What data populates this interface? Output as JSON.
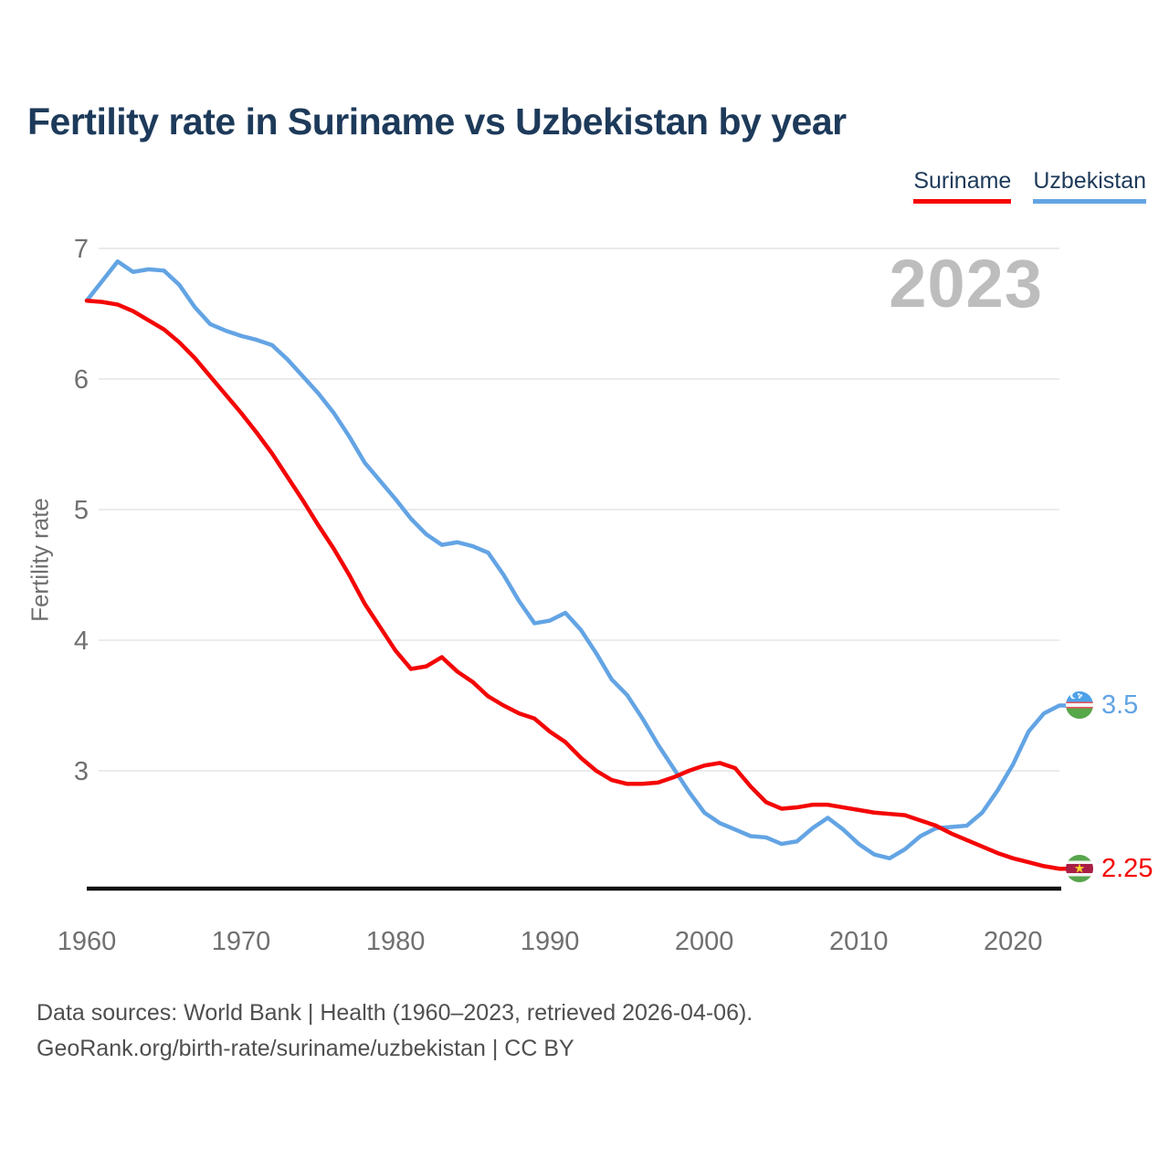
{
  "title": "Fertility rate in Suriname vs Uzbekistan by year",
  "watermark": "2023",
  "legend": [
    {
      "label": "Suriname",
      "color": "#f40505"
    },
    {
      "label": "Uzbekistan",
      "color": "#63a4e4"
    }
  ],
  "end_labels": [
    {
      "series": "Uzbekistan",
      "value": "3.5",
      "color": "#63a4e4",
      "flag_icon": "uzbekistan-flag"
    },
    {
      "series": "Suriname",
      "value": "2.25",
      "color": "#f40505",
      "flag_icon": "suriname-flag"
    }
  ],
  "icons": {
    "suriname_star": "★"
  },
  "axes": {
    "y_label": "Fertility rate",
    "y_ticks": [
      7,
      6,
      5,
      4,
      3
    ],
    "x_ticks": [
      1960,
      1970,
      1980,
      1990,
      2000,
      2010,
      2020
    ]
  },
  "footer": {
    "line1": "Data sources: World Bank | Health (1960–2023, retrieved 2026-04-06).",
    "line2": "GeoRank.org/birth-rate/suriname/uzbekistan | CC BY"
  },
  "chart_data": {
    "type": "line",
    "title": "Fertility rate in Suriname vs Uzbekistan by year",
    "xlabel": "",
    "ylabel": "Fertility rate",
    "xlim": [
      1960,
      2023
    ],
    "ylim": [
      2.1,
      7.15
    ],
    "grid": "horizontal",
    "legend_position": "top-right",
    "x": [
      1960,
      1961,
      1962,
      1963,
      1964,
      1965,
      1966,
      1967,
      1968,
      1969,
      1970,
      1971,
      1972,
      1973,
      1974,
      1975,
      1976,
      1977,
      1978,
      1979,
      1980,
      1981,
      1982,
      1983,
      1984,
      1985,
      1986,
      1987,
      1988,
      1989,
      1990,
      1991,
      1992,
      1993,
      1994,
      1995,
      1996,
      1997,
      1998,
      1999,
      2000,
      2001,
      2002,
      2003,
      2004,
      2005,
      2006,
      2007,
      2008,
      2009,
      2010,
      2011,
      2012,
      2013,
      2014,
      2015,
      2016,
      2017,
      2018,
      2019,
      2020,
      2021,
      2022,
      2023
    ],
    "series": [
      {
        "name": "Uzbekistan",
        "color": "#63a4e4",
        "values": [
          6.6,
          6.75,
          6.9,
          6.82,
          6.84,
          6.83,
          6.72,
          6.55,
          6.42,
          6.37,
          6.33,
          6.3,
          6.26,
          6.15,
          6.02,
          5.89,
          5.74,
          5.56,
          5.36,
          5.22,
          5.08,
          4.93,
          4.81,
          4.73,
          4.75,
          4.72,
          4.67,
          4.5,
          4.3,
          4.13,
          4.15,
          4.21,
          4.08,
          3.9,
          3.7,
          3.58,
          3.4,
          3.2,
          3.02,
          2.84,
          2.68,
          2.6,
          2.55,
          2.5,
          2.49,
          2.44,
          2.46,
          2.56,
          2.64,
          2.55,
          2.44,
          2.36,
          2.33,
          2.4,
          2.5,
          2.56,
          2.57,
          2.58,
          2.68,
          2.85,
          3.05,
          3.3,
          3.44,
          3.5
        ],
        "end_value": 3.5
      },
      {
        "name": "Suriname",
        "color": "#f40505",
        "values": [
          6.6,
          6.59,
          6.57,
          6.52,
          6.45,
          6.38,
          6.28,
          6.16,
          6.02,
          5.88,
          5.74,
          5.59,
          5.43,
          5.25,
          5.07,
          4.88,
          4.7,
          4.5,
          4.28,
          4.1,
          3.92,
          3.78,
          3.8,
          3.87,
          3.76,
          3.68,
          3.57,
          3.5,
          3.44,
          3.4,
          3.3,
          3.22,
          3.1,
          3.0,
          2.93,
          2.9,
          2.9,
          2.91,
          2.95,
          3.0,
          3.04,
          3.06,
          3.02,
          2.88,
          2.76,
          2.71,
          2.72,
          2.74,
          2.74,
          2.72,
          2.7,
          2.68,
          2.67,
          2.66,
          2.62,
          2.58,
          2.52,
          2.47,
          2.42,
          2.37,
          2.33,
          2.3,
          2.27,
          2.25
        ],
        "end_value": 2.25
      }
    ]
  }
}
